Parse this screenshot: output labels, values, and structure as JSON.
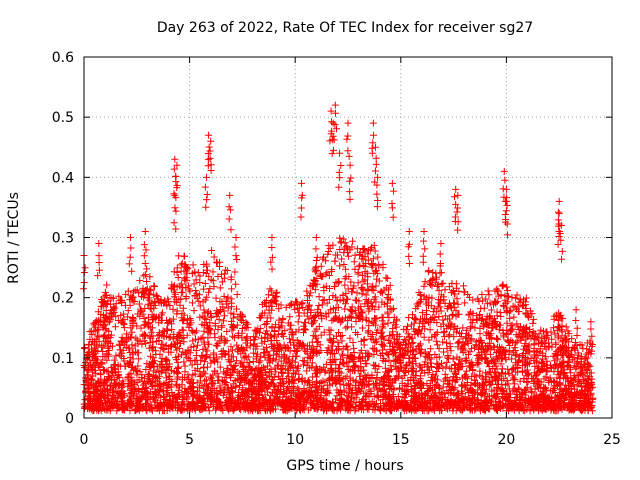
{
  "chart_data": {
    "type": "scatter",
    "title": "Day 263 of 2022, Rate Of TEC Index for receiver sg27",
    "xlabel": "GPS time / hours",
    "ylabel": "ROTI / TECUs",
    "xlim": [
      0,
      25
    ],
    "ylim": [
      0,
      0.6
    ],
    "xticks": [
      "0",
      "5",
      "10",
      "15",
      "20",
      "25"
    ],
    "yticks": [
      "0",
      "0.1",
      "0.2",
      "0.3",
      "0.4",
      "0.5",
      "0.6"
    ],
    "grid": true,
    "marker": "+",
    "color": "#ff0000",
    "series": [
      {
        "envelope": {
          "x": [
            0.0,
            0.5,
            1.0,
            1.5,
            2.0,
            2.5,
            3.0,
            3.5,
            4.0,
            4.5,
            5.0,
            5.5,
            6.0,
            6.5,
            7.0,
            7.5,
            8.0,
            8.5,
            9.0,
            9.5,
            10.0,
            10.5,
            11.0,
            11.5,
            12.0,
            12.5,
            13.0,
            13.5,
            14.0,
            14.5,
            15.0,
            15.5,
            16.0,
            16.5,
            17.0,
            17.5,
            18.0,
            18.5,
            19.0,
            19.5,
            20.0,
            20.5,
            21.0,
            21.5,
            22.0,
            22.5,
            23.0,
            23.5,
            24.0
          ],
          "base": [
            0.12,
            0.16,
            0.22,
            0.2,
            0.21,
            0.22,
            0.25,
            0.21,
            0.2,
            0.28,
            0.26,
            0.24,
            0.28,
            0.26,
            0.24,
            0.18,
            0.13,
            0.2,
            0.22,
            0.18,
            0.2,
            0.22,
            0.26,
            0.28,
            0.3,
            0.3,
            0.28,
            0.3,
            0.28,
            0.22,
            0.14,
            0.18,
            0.24,
            0.26,
            0.24,
            0.22,
            0.22,
            0.2,
            0.22,
            0.22,
            0.22,
            0.2,
            0.2,
            0.16,
            0.14,
            0.2,
            0.14,
            0.12,
            0.13
          ]
        },
        "peaks": [
          {
            "x": 0.0,
            "y": 0.27
          },
          {
            "x": 0.7,
            "y": 0.29
          },
          {
            "x": 2.2,
            "y": 0.3
          },
          {
            "x": 2.9,
            "y": 0.31
          },
          {
            "x": 4.3,
            "y": 0.43
          },
          {
            "x": 4.4,
            "y": 0.42
          },
          {
            "x": 4.3,
            "y": 0.37
          },
          {
            "x": 5.9,
            "y": 0.47
          },
          {
            "x": 6.0,
            "y": 0.46
          },
          {
            "x": 5.8,
            "y": 0.4
          },
          {
            "x": 6.9,
            "y": 0.37
          },
          {
            "x": 7.2,
            "y": 0.3
          },
          {
            "x": 8.9,
            "y": 0.3
          },
          {
            "x": 10.3,
            "y": 0.39
          },
          {
            "x": 11.0,
            "y": 0.3
          },
          {
            "x": 11.7,
            "y": 0.51
          },
          {
            "x": 11.9,
            "y": 0.52
          },
          {
            "x": 11.8,
            "y": 0.49
          },
          {
            "x": 12.1,
            "y": 0.44
          },
          {
            "x": 12.5,
            "y": 0.49
          },
          {
            "x": 12.6,
            "y": 0.42
          },
          {
            "x": 13.7,
            "y": 0.49
          },
          {
            "x": 13.8,
            "y": 0.45
          },
          {
            "x": 13.9,
            "y": 0.4
          },
          {
            "x": 14.6,
            "y": 0.39
          },
          {
            "x": 15.4,
            "y": 0.31
          },
          {
            "x": 16.1,
            "y": 0.31
          },
          {
            "x": 16.9,
            "y": 0.29
          },
          {
            "x": 17.6,
            "y": 0.38
          },
          {
            "x": 17.7,
            "y": 0.37
          },
          {
            "x": 19.9,
            "y": 0.41
          },
          {
            "x": 20.0,
            "y": 0.38
          },
          {
            "x": 20.0,
            "y": 0.36
          },
          {
            "x": 22.5,
            "y": 0.36
          },
          {
            "x": 22.5,
            "y": 0.34
          },
          {
            "x": 22.6,
            "y": 0.32
          },
          {
            "x": 23.3,
            "y": 0.18
          },
          {
            "x": 24.0,
            "y": 0.16
          }
        ]
      }
    ]
  }
}
